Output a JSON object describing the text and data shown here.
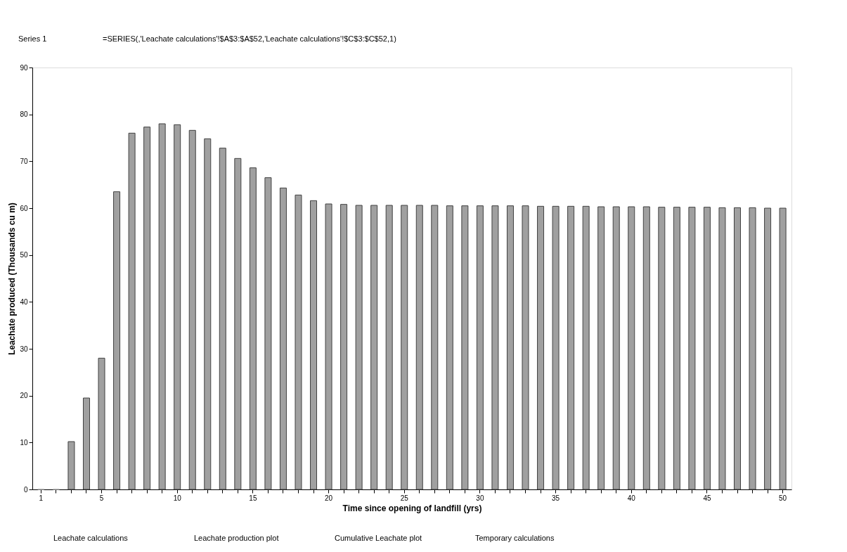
{
  "chart_data": {
    "type": "bar",
    "xlabel": "Time since opening of landfill (yrs)",
    "ylabel": "Leachate produced (Thousands cu m)",
    "categories": [
      "1",
      null,
      null,
      null,
      "5",
      null,
      null,
      null,
      null,
      "10",
      null,
      null,
      null,
      null,
      "15",
      null,
      null,
      null,
      null,
      "20",
      null,
      null,
      null,
      null,
      "25",
      null,
      null,
      null,
      null,
      "30",
      null,
      null,
      null,
      null,
      "35",
      null,
      null,
      null,
      null,
      "40",
      null,
      null,
      null,
      null,
      "45",
      null,
      null,
      null,
      null,
      "50"
    ],
    "values": [
      0,
      0,
      10.2,
      19.5,
      28,
      63.5,
      76,
      77.3,
      78,
      77.8,
      76.6,
      74.8,
      72.8,
      70.6,
      68.6,
      66.5,
      64.3,
      62.8,
      61.6,
      60.9,
      60.8,
      60.6,
      60.6,
      60.6,
      60.6,
      60.6,
      60.6,
      60.5,
      60.5,
      60.5,
      60.5,
      60.5,
      60.5,
      60.4,
      60.4,
      60.4,
      60.4,
      60.3,
      60.3,
      60.3,
      60.3,
      60.2,
      60.2,
      60.2,
      60.2,
      60.1,
      60.1,
      60.1,
      60.0,
      60.0
    ],
    "color": "#a0a0a0",
    "ylim": [
      0,
      90
    ],
    "yticks": [
      0,
      10,
      20,
      30,
      40,
      50,
      60,
      70,
      80,
      90
    ],
    "grid": false,
    "annotations": [
      "Series 1",
      "=SERIES(,'Leachate calculations'!$A$3:$A$52,'Leachate calculations'!$C$3:$C$52,1)",
      "Leachate calculations",
      "Leachate production plot",
      "Cumulative Leachate plot",
      "Temporary calculations"
    ]
  }
}
